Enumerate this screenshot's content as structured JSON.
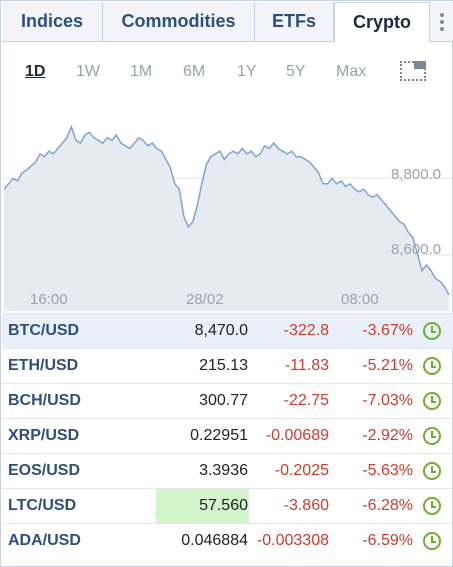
{
  "tabs": [
    {
      "label": "Indices"
    },
    {
      "label": "Commodities"
    },
    {
      "label": "ETFs"
    },
    {
      "label": "Crypto",
      "active": true
    }
  ],
  "periods": [
    "1D",
    "1W",
    "1M",
    "6M",
    "1Y",
    "5Y",
    "Max"
  ],
  "active_period": "1D",
  "colors": {
    "line": "#7fa3d1",
    "area": "#e6ebf2",
    "negative": "#d23b2a",
    "symbol": "#2f4f7f",
    "clock": "#6fae2f",
    "highlight": "#d4f4cc"
  },
  "chart_data": {
    "type": "area",
    "y_ticks": [
      "8,800.0",
      "8,600.0"
    ],
    "x_ticks": [
      "16:00",
      "28/02",
      "08:00"
    ],
    "ylim": [
      8440,
      9130
    ],
    "values": [
      8860,
      8880,
      8900,
      8890,
      8920,
      8930,
      8945,
      8960,
      8990,
      8980,
      9000,
      8990,
      9010,
      9030,
      9050,
      9090,
      9040,
      9030,
      9060,
      9070,
      9050,
      9040,
      9030,
      9050,
      9040,
      9060,
      9030,
      9020,
      9010,
      9030,
      9050,
      9040,
      9020,
      9030,
      9010,
      9000,
      8970,
      8940,
      8880,
      8860,
      8760,
      8720,
      8740,
      8800,
      8880,
      8950,
      8980,
      8990,
      9000,
      8970,
      8990,
      9000,
      8990,
      9010,
      8990,
      9000,
      8980,
      8990,
      9020,
      9010,
      9030,
      9010,
      9000,
      8990,
      9000,
      8980,
      8980,
      8970,
      8960,
      8940,
      8920,
      8880,
      8880,
      8900,
      8880,
      8890,
      8870,
      8880,
      8860,
      8850,
      8860,
      8840,
      8830,
      8840,
      8820,
      8800,
      8780,
      8760,
      8740,
      8730,
      8700,
      8680,
      8620,
      8560,
      8580,
      8560,
      8530,
      8520,
      8500,
      8470
    ]
  },
  "rows": [
    {
      "symbol": "BTC/USD",
      "price": "8,470.0",
      "change": "-322.8",
      "pct": "-3.67%"
    },
    {
      "symbol": "ETH/USD",
      "price": "215.13",
      "change": "-11.83",
      "pct": "-5.21%"
    },
    {
      "symbol": "BCH/USD",
      "price": "300.77",
      "change": "-22.75",
      "pct": "-7.03%"
    },
    {
      "symbol": "XRP/USD",
      "price": "0.22951",
      "change": "-0.00689",
      "pct": "-2.92%"
    },
    {
      "symbol": "EOS/USD",
      "price": "3.3936",
      "change": "-0.2025",
      "pct": "-5.63%"
    },
    {
      "symbol": "LTC/USD",
      "price": "57.560",
      "change": "-3.860",
      "pct": "-6.28%"
    },
    {
      "symbol": "ADA/USD",
      "price": "0.046884",
      "change": "-0.003308",
      "pct": "-6.59%"
    }
  ]
}
